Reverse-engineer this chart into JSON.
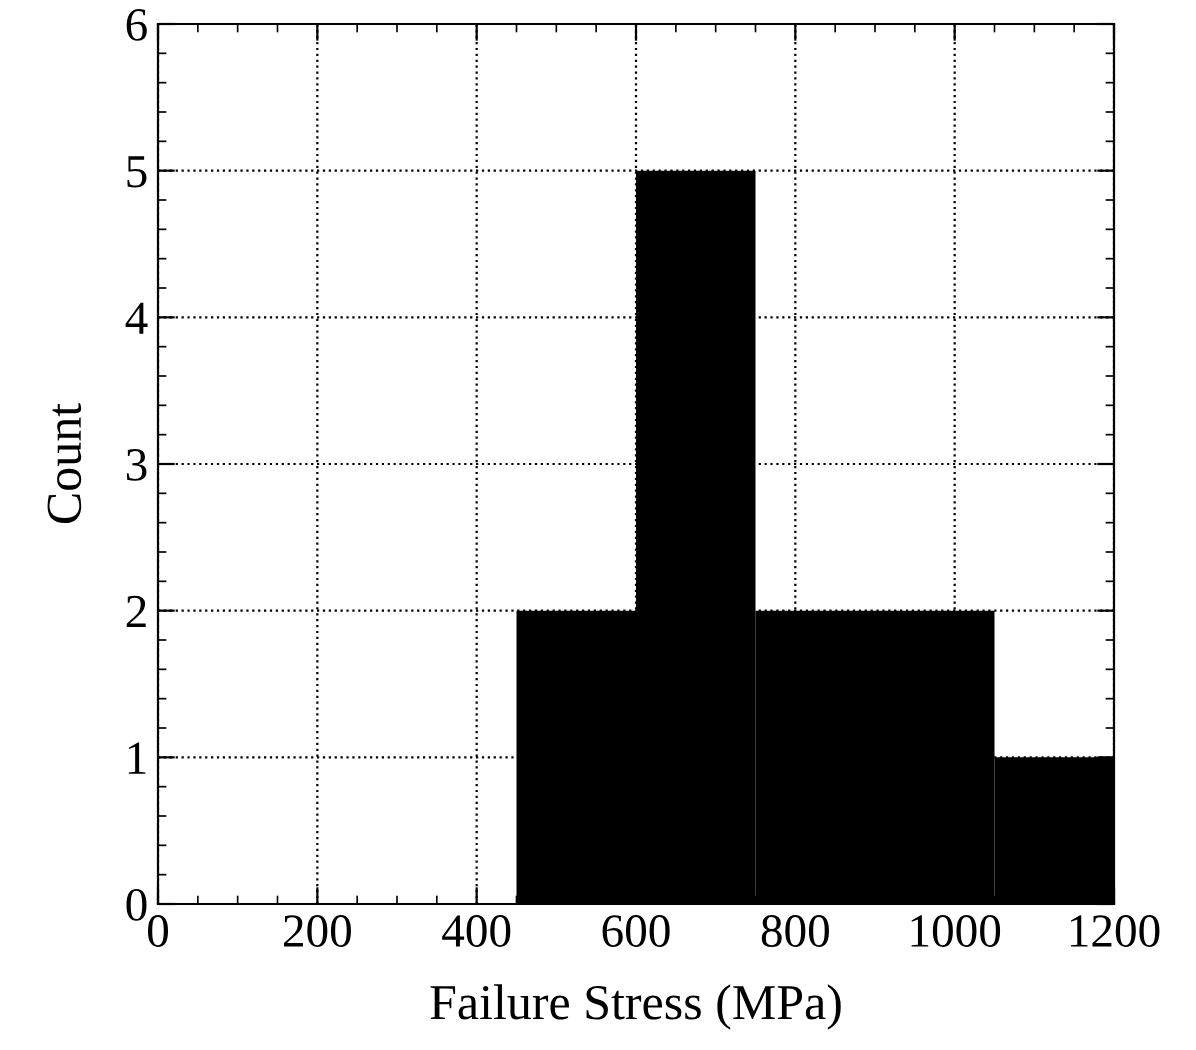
{
  "chart_data": {
    "type": "histogram",
    "xlabel": "Failure Stress (MPa)",
    "ylabel": "Count",
    "bins": [
      450,
      600,
      750,
      900,
      1050,
      1200
    ],
    "values": [
      2,
      5,
      2,
      2,
      1
    ],
    "color": "#000000",
    "xlim": [
      0,
      1200
    ],
    "xticks": [
      0,
      200,
      400,
      600,
      800,
      1000,
      1200
    ],
    "ylim": [
      0,
      6
    ],
    "yticks": [
      0,
      1,
      2,
      3,
      4,
      5,
      6
    ],
    "grid": true,
    "line_style": "dotted"
  }
}
